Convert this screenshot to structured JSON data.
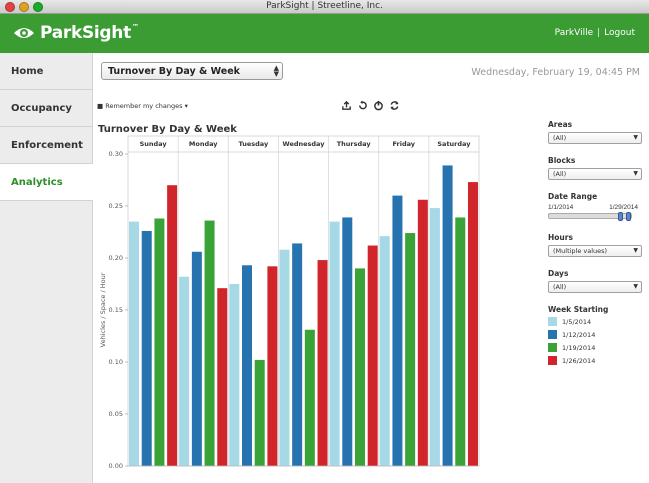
{
  "window": {
    "title": "ParkSight | Streetline, Inc."
  },
  "header": {
    "brand": "ParkSight",
    "trademark": "™",
    "city_link": "ParkVille",
    "separator": "|",
    "logout_link": "Logout"
  },
  "sidebar": {
    "items": [
      {
        "label": "Home"
      },
      {
        "label": "Occupancy"
      },
      {
        "label": "Enforcement"
      },
      {
        "label": "Analytics"
      }
    ]
  },
  "toolbar": {
    "report_select": "Turnover By Day & Week",
    "datetime": "Wednesday, February 19, 04:45 PM",
    "remember": "Remember my changes"
  },
  "filters": {
    "areas_label": "Areas",
    "areas_value": "(All)",
    "blocks_label": "Blocks",
    "blocks_value": "(All)",
    "date_range_label": "Date Range",
    "date_start": "1/1/2014",
    "date_end": "1/29/2014",
    "hours_label": "Hours",
    "hours_value": "(Multiple values)",
    "days_label": "Days",
    "days_value": "(All)",
    "week_label": "Week Starting"
  },
  "chart_data": {
    "type": "bar",
    "title": "Turnover By Day & Week",
    "ylabel": "Vehicles / Space / Hour",
    "ylim": [
      0,
      0.3
    ],
    "yticks": [
      "0.30",
      "0.25",
      "0.20",
      "0.15",
      "0.10",
      "0.05",
      "0.00"
    ],
    "categories": [
      "Sunday",
      "Monday",
      "Tuesday",
      "Wednesday",
      "Thursday",
      "Friday",
      "Saturday"
    ],
    "series": [
      {
        "name": "1/5/2014",
        "color": "#a6d8e6",
        "values": [
          0.235,
          0.182,
          0.175,
          0.208,
          0.235,
          0.221,
          0.248
        ]
      },
      {
        "name": "1/12/2014",
        "color": "#2673b0",
        "values": [
          0.226,
          0.206,
          0.193,
          0.214,
          0.239,
          0.26,
          0.289
        ]
      },
      {
        "name": "1/19/2014",
        "color": "#3aa337",
        "values": [
          0.238,
          0.236,
          0.102,
          0.131,
          0.19,
          0.224,
          0.239
        ]
      },
      {
        "name": "1/26/2014",
        "color": "#d0262b",
        "values": [
          0.27,
          0.171,
          0.192,
          0.198,
          0.212,
          0.256,
          0.273
        ]
      }
    ]
  }
}
